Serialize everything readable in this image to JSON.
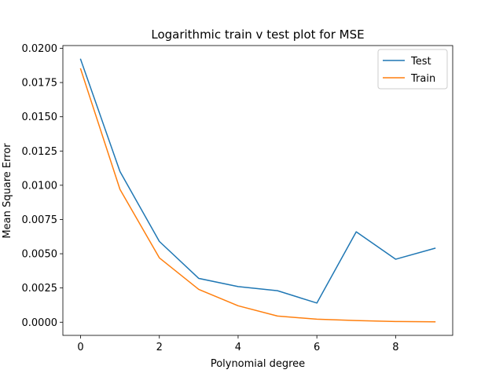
{
  "chart_data": {
    "type": "line",
    "title": "Logarithmic train v test plot for MSE",
    "xlabel": "Polynomial degree",
    "ylabel": "Mean Square Error",
    "xlim": [
      -0.45,
      9.45
    ],
    "ylim": [
      -0.00096,
      0.0202
    ],
    "x_ticks": [
      0,
      2,
      4,
      6,
      8
    ],
    "y_ticks": [
      0.0,
      0.0025,
      0.005,
      0.0075,
      0.01,
      0.0125,
      0.015,
      0.0175,
      0.02
    ],
    "y_tick_labels": [
      "0.0000",
      "0.0025",
      "0.0050",
      "0.0075",
      "0.0100",
      "0.0125",
      "0.0150",
      "0.0175",
      "0.0200"
    ],
    "grid": false,
    "legend_position": "top-right",
    "x": [
      0,
      1,
      2,
      3,
      4,
      5,
      6,
      7,
      8,
      9
    ],
    "series": [
      {
        "name": "Test",
        "color": "#1f77b4",
        "values": [
          0.0192,
          0.011,
          0.0059,
          0.0032,
          0.0026,
          0.0023,
          0.0014,
          0.0066,
          0.0046,
          0.0054
        ]
      },
      {
        "name": "Train",
        "color": "#ff7f0e",
        "values": [
          0.0185,
          0.0097,
          0.0047,
          0.0024,
          0.0012,
          0.00045,
          0.00022,
          0.00012,
          5e-05,
          3e-05
        ]
      }
    ]
  }
}
